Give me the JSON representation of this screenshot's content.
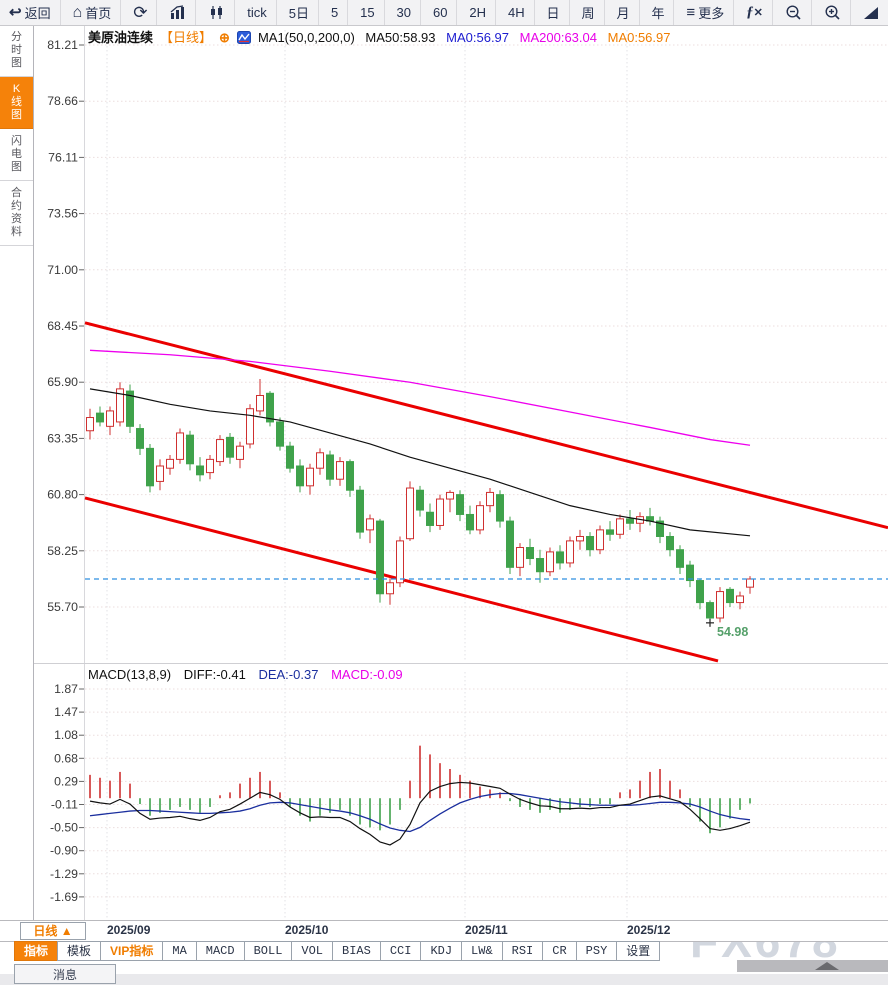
{
  "colors": {
    "up": "#cf3030",
    "down": "#3fa24b",
    "ma50": "#111111",
    "ma200": "#ee00ee",
    "channel": "#ea0000",
    "last_price_line": "#2f8fe0",
    "diff_line": "#111111",
    "dea_line": "#1b2f9e",
    "accent_orange": "#f5820a",
    "low_label": "#55a06a"
  },
  "toolbar": {
    "items": [
      {
        "name": "back-button",
        "label": "返回",
        "icon": "back"
      },
      {
        "name": "home-button",
        "label": "首页",
        "icon": "home"
      },
      {
        "name": "refresh-button",
        "label": "",
        "icon": "refresh"
      },
      {
        "name": "bar-chart-button",
        "label": "",
        "icon": "bar-chart"
      },
      {
        "name": "candlestick-button",
        "label": "",
        "icon": "candlestick"
      },
      {
        "name": "interval-tick-button",
        "label": "tick",
        "icon": ""
      },
      {
        "name": "interval-5d-button",
        "label": "5日",
        "icon": ""
      },
      {
        "name": "interval-5-button",
        "label": "5",
        "icon": ""
      },
      {
        "name": "interval-15-button",
        "label": "15",
        "icon": ""
      },
      {
        "name": "interval-30-button",
        "label": "30",
        "icon": ""
      },
      {
        "name": "interval-60-button",
        "label": "60",
        "icon": ""
      },
      {
        "name": "interval-2h-button",
        "label": "2H",
        "icon": ""
      },
      {
        "name": "interval-4h-button",
        "label": "4H",
        "icon": ""
      },
      {
        "name": "interval-day-button",
        "label": "日",
        "icon": ""
      },
      {
        "name": "interval-week-button",
        "label": "周",
        "icon": ""
      },
      {
        "name": "interval-month-button",
        "label": "月",
        "icon": ""
      },
      {
        "name": "interval-year-button",
        "label": "年",
        "icon": ""
      },
      {
        "name": "more-button",
        "label": "更多",
        "icon": "menu"
      },
      {
        "name": "fx-button",
        "label": "",
        "icon": "fx"
      },
      {
        "name": "zoom-out-button",
        "label": "",
        "icon": "zoom-out"
      },
      {
        "name": "zoom-in-button",
        "label": "",
        "icon": "zoom-in"
      },
      {
        "name": "draw-tool-button",
        "label": "",
        "icon": "triangle"
      }
    ]
  },
  "sidebar": {
    "items": [
      {
        "name": "sidebar-item-timeshare",
        "label": "分时图",
        "active": false
      },
      {
        "name": "sidebar-item-kline",
        "label": "K线图",
        "active": true
      },
      {
        "name": "sidebar-item-lightning",
        "label": "闪电图",
        "active": false
      },
      {
        "name": "sidebar-item-contract-info",
        "label": "合约资料",
        "active": false
      }
    ]
  },
  "price_header": {
    "symbol": "美原油连续",
    "period_tag": "【日线】",
    "plus": "⊕",
    "ma_settings": "MA1(50,0,200,0)",
    "ma50": "MA50:58.93",
    "ma0_blue": "MA0:56.97",
    "ma200": "MA200:63.04",
    "ma0_orange": "MA0:56.97"
  },
  "macd_header": {
    "title": "MACD(13,8,9)",
    "diff": "DIFF:-0.41",
    "dea": "DEA:-0.37",
    "macd": "MACD:-0.09"
  },
  "price_axis": {
    "ticks": [
      "81.21",
      "78.66",
      "76.11",
      "73.56",
      "71.00",
      "68.45",
      "65.90",
      "63.35",
      "60.80",
      "58.25",
      "55.70"
    ]
  },
  "macd_axis": {
    "ticks": [
      "1.87",
      "1.47",
      "1.08",
      "0.68",
      "0.29",
      "-0.11",
      "-0.50",
      "-0.90",
      "-1.29",
      "-1.69"
    ]
  },
  "x_axis": {
    "period_button": "日线 ▲",
    "labels": [
      {
        "text": "2025/09",
        "x": 107
      },
      {
        "text": "2025/10",
        "x": 285
      },
      {
        "text": "2025/11",
        "x": 465
      },
      {
        "text": "2025/12",
        "x": 627
      }
    ]
  },
  "tabs": [
    {
      "name": "tab-indicator",
      "label": "指标",
      "style": "active"
    },
    {
      "name": "tab-template",
      "label": "模板",
      "style": "normal"
    },
    {
      "name": "tab-vip-indicator",
      "label": "VIP指标",
      "style": "vip"
    },
    {
      "name": "tab-ma",
      "label": "MA",
      "style": "latin"
    },
    {
      "name": "tab-macd",
      "label": "MACD",
      "style": "latin"
    },
    {
      "name": "tab-boll",
      "label": "BOLL",
      "style": "latin"
    },
    {
      "name": "tab-vol",
      "label": "VOL",
      "style": "latin"
    },
    {
      "name": "tab-bias",
      "label": "BIAS",
      "style": "latin"
    },
    {
      "name": "tab-cci",
      "label": "CCI",
      "style": "latin"
    },
    {
      "name": "tab-kdj",
      "label": "KDJ",
      "style": "latin"
    },
    {
      "name": "tab-lw",
      "label": "LW&",
      "style": "latin"
    },
    {
      "name": "tab-rsi",
      "label": "RSI",
      "style": "latin"
    },
    {
      "name": "tab-cr",
      "label": "CR",
      "style": "latin"
    },
    {
      "name": "tab-psy",
      "label": "PSY",
      "style": "latin"
    },
    {
      "name": "tab-settings",
      "label": "设置",
      "style": "normal"
    }
  ],
  "bottom": {
    "partial_tab": "消息"
  },
  "watermark": "FX678",
  "chart_data": {
    "type": "candlestick",
    "symbol": "美原油连续",
    "interval": "日线",
    "ylabel": "price",
    "y_ticks": [
      81.21,
      78.66,
      76.11,
      73.56,
      71.0,
      68.45,
      65.9,
      63.35,
      60.8,
      58.25,
      55.7
    ],
    "x_months": [
      "2025/09",
      "2025/10",
      "2025/11",
      "2025/12"
    ],
    "last_price": 56.97,
    "low_point": {
      "index": 62,
      "price": 54.98,
      "label": "54.98"
    },
    "ohlc": [
      [
        63.7,
        64.7,
        63.3,
        64.3
      ],
      [
        64.5,
        64.8,
        63.9,
        64.1
      ],
      [
        63.9,
        64.8,
        63.5,
        64.6
      ],
      [
        64.1,
        65.9,
        63.9,
        65.6
      ],
      [
        65.5,
        65.8,
        63.6,
        63.9
      ],
      [
        63.8,
        64.0,
        62.6,
        62.9
      ],
      [
        62.9,
        63.1,
        60.9,
        61.2
      ],
      [
        61.4,
        62.4,
        61.0,
        62.1
      ],
      [
        62.0,
        62.6,
        61.7,
        62.4
      ],
      [
        62.4,
        63.8,
        62.2,
        63.6
      ],
      [
        63.5,
        63.7,
        61.9,
        62.2
      ],
      [
        62.1,
        62.5,
        61.4,
        61.7
      ],
      [
        61.8,
        62.6,
        61.5,
        62.4
      ],
      [
        62.3,
        63.5,
        62.1,
        63.3
      ],
      [
        63.4,
        63.6,
        62.2,
        62.5
      ],
      [
        62.4,
        63.2,
        62.0,
        63.0
      ],
      [
        63.1,
        64.9,
        62.9,
        64.7
      ],
      [
        64.6,
        66.05,
        64.4,
        65.3
      ],
      [
        65.4,
        65.5,
        63.9,
        64.1
      ],
      [
        64.1,
        64.3,
        62.8,
        63.0
      ],
      [
        63.0,
        63.2,
        61.8,
        62.0
      ],
      [
        62.1,
        62.4,
        60.9,
        61.2
      ],
      [
        61.2,
        62.2,
        60.8,
        62.0
      ],
      [
        62.0,
        62.9,
        61.7,
        62.7
      ],
      [
        62.6,
        62.8,
        61.2,
        61.5
      ],
      [
        61.5,
        62.5,
        61.2,
        62.3
      ],
      [
        62.3,
        62.4,
        60.7,
        61.0
      ],
      [
        61.0,
        61.2,
        58.8,
        59.1
      ],
      [
        59.2,
        59.9,
        58.6,
        59.7
      ],
      [
        59.6,
        59.7,
        55.9,
        56.3
      ],
      [
        56.3,
        57.0,
        55.8,
        56.8
      ],
      [
        56.8,
        58.9,
        56.6,
        58.7
      ],
      [
        58.8,
        61.4,
        58.7,
        61.1
      ],
      [
        61.0,
        61.2,
        59.8,
        60.1
      ],
      [
        60.0,
        60.4,
        59.1,
        59.4
      ],
      [
        59.4,
        60.8,
        59.2,
        60.6
      ],
      [
        60.6,
        61.0,
        60.0,
        60.9
      ],
      [
        60.8,
        61.0,
        59.6,
        59.9
      ],
      [
        59.9,
        60.3,
        59.0,
        59.2
      ],
      [
        59.2,
        60.5,
        59.0,
        60.3
      ],
      [
        60.3,
        61.1,
        60.0,
        60.9
      ],
      [
        60.8,
        61.0,
        59.3,
        59.6
      ],
      [
        59.6,
        59.8,
        57.2,
        57.5
      ],
      [
        57.5,
        58.6,
        57.1,
        58.4
      ],
      [
        58.4,
        58.8,
        57.6,
        57.9
      ],
      [
        57.9,
        58.3,
        56.8,
        57.3
      ],
      [
        57.3,
        58.4,
        57.1,
        58.2
      ],
      [
        58.2,
        58.5,
        57.4,
        57.7
      ],
      [
        57.7,
        58.9,
        57.5,
        58.7
      ],
      [
        58.7,
        59.2,
        58.3,
        58.9
      ],
      [
        58.9,
        59.1,
        58.0,
        58.3
      ],
      [
        58.3,
        59.4,
        58.1,
        59.2
      ],
      [
        59.2,
        59.6,
        58.7,
        59.0
      ],
      [
        59.0,
        59.9,
        58.8,
        59.7
      ],
      [
        59.7,
        60.1,
        59.2,
        59.5
      ],
      [
        59.5,
        60.0,
        59.1,
        59.8
      ],
      [
        59.8,
        60.2,
        59.4,
        59.6
      ],
      [
        59.6,
        59.8,
        58.6,
        58.9
      ],
      [
        58.9,
        59.1,
        58.0,
        58.3
      ],
      [
        58.3,
        58.5,
        57.2,
        57.5
      ],
      [
        57.6,
        57.8,
        56.6,
        56.9
      ],
      [
        56.9,
        57.0,
        55.6,
        55.9
      ],
      [
        55.9,
        56.0,
        54.98,
        55.2
      ],
      [
        55.2,
        56.6,
        55.0,
        56.4
      ],
      [
        56.5,
        56.6,
        55.7,
        55.9
      ],
      [
        55.9,
        56.4,
        55.6,
        56.2
      ],
      [
        56.6,
        57.1,
        56.3,
        56.97
      ]
    ],
    "ma50": [
      [
        0,
        65.6
      ],
      [
        4,
        65.3
      ],
      [
        8,
        64.9
      ],
      [
        12,
        64.6
      ],
      [
        16,
        64.4
      ],
      [
        20,
        64.1
      ],
      [
        24,
        63.6
      ],
      [
        28,
        63.1
      ],
      [
        32,
        62.5
      ],
      [
        36,
        62.0
      ],
      [
        40,
        61.5
      ],
      [
        44,
        60.9
      ],
      [
        48,
        60.3
      ],
      [
        52,
        59.9
      ],
      [
        56,
        59.6
      ],
      [
        60,
        59.2
      ],
      [
        66,
        58.93
      ]
    ],
    "ma200": [
      [
        0,
        67.35
      ],
      [
        8,
        67.15
      ],
      [
        16,
        66.85
      ],
      [
        24,
        66.4
      ],
      [
        32,
        65.9
      ],
      [
        40,
        65.25
      ],
      [
        48,
        64.55
      ],
      [
        56,
        63.85
      ],
      [
        62,
        63.3
      ],
      [
        66,
        63.04
      ]
    ],
    "channel_upper": [
      [
        -0.5,
        68.6
      ],
      [
        79.8,
        59.3
      ]
    ],
    "channel_lower": [
      [
        -0.5,
        60.65
      ],
      [
        62.8,
        53.25
      ]
    ],
    "macd": {
      "params": "13,8,9",
      "diff_last": -0.41,
      "dea_last": -0.37,
      "macd_last": -0.09,
      "y_ticks": [
        1.87,
        1.47,
        1.08,
        0.68,
        0.29,
        -0.11,
        -0.5,
        -0.9,
        -1.29,
        -1.69
      ],
      "hist": [
        0.4,
        0.35,
        0.3,
        0.45,
        0.25,
        -0.1,
        -0.3,
        -0.25,
        -0.2,
        -0.15,
        -0.2,
        -0.25,
        -0.15,
        0.05,
        0.1,
        0.25,
        0.35,
        0.45,
        0.3,
        0.1,
        -0.15,
        -0.3,
        -0.4,
        -0.3,
        -0.25,
        -0.2,
        -0.3,
        -0.45,
        -0.5,
        -0.55,
        -0.45,
        -0.2,
        0.3,
        0.9,
        0.75,
        0.6,
        0.5,
        0.4,
        0.3,
        0.2,
        0.15,
        0.1,
        -0.05,
        -0.15,
        -0.2,
        -0.25,
        -0.2,
        -0.25,
        -0.2,
        -0.15,
        -0.15,
        -0.1,
        -0.1,
        0.1,
        0.15,
        0.3,
        0.45,
        0.5,
        0.3,
        0.15,
        -0.15,
        -0.4,
        -0.6,
        -0.5,
        -0.35,
        -0.2,
        -0.09
      ],
      "diff": [
        -0.05,
        -0.08,
        -0.1,
        -0.02,
        -0.1,
        -0.26,
        -0.36,
        -0.34,
        -0.33,
        -0.31,
        -0.35,
        -0.38,
        -0.33,
        -0.23,
        -0.19,
        -0.1,
        0.0,
        0.1,
        0.06,
        -0.02,
        -0.15,
        -0.25,
        -0.33,
        -0.32,
        -0.33,
        -0.33,
        -0.4,
        -0.52,
        -0.62,
        -0.75,
        -0.8,
        -0.7,
        -0.45,
        -0.08,
        0.12,
        0.2,
        0.25,
        0.27,
        0.26,
        0.23,
        0.2,
        0.17,
        0.07,
        -0.02,
        -0.08,
        -0.13,
        -0.14,
        -0.18,
        -0.18,
        -0.17,
        -0.18,
        -0.16,
        -0.16,
        -0.12,
        -0.1,
        -0.04,
        0.02,
        0.04,
        -0.01,
        -0.06,
        -0.19,
        -0.35,
        -0.52,
        -0.55,
        -0.52,
        -0.47,
        -0.41
      ],
      "dea": [
        -0.3,
        -0.28,
        -0.26,
        -0.24,
        -0.22,
        -0.21,
        -0.21,
        -0.22,
        -0.23,
        -0.24,
        -0.25,
        -0.26,
        -0.26,
        -0.25,
        -0.24,
        -0.22,
        -0.18,
        -0.12,
        -0.08,
        -0.07,
        -0.08,
        -0.11,
        -0.14,
        -0.17,
        -0.2,
        -0.22,
        -0.25,
        -0.3,
        -0.36,
        -0.44,
        -0.51,
        -0.55,
        -0.57,
        -0.5,
        -0.38,
        -0.27,
        -0.17,
        -0.08,
        -0.02,
        0.03,
        0.06,
        0.08,
        0.08,
        0.06,
        0.03,
        0.0,
        -0.03,
        -0.06,
        -0.08,
        -0.1,
        -0.11,
        -0.12,
        -0.12,
        -0.12,
        -0.12,
        -0.11,
        -0.09,
        -0.07,
        -0.07,
        -0.08,
        -0.1,
        -0.15,
        -0.22,
        -0.28,
        -0.32,
        -0.35,
        -0.37
      ]
    }
  }
}
